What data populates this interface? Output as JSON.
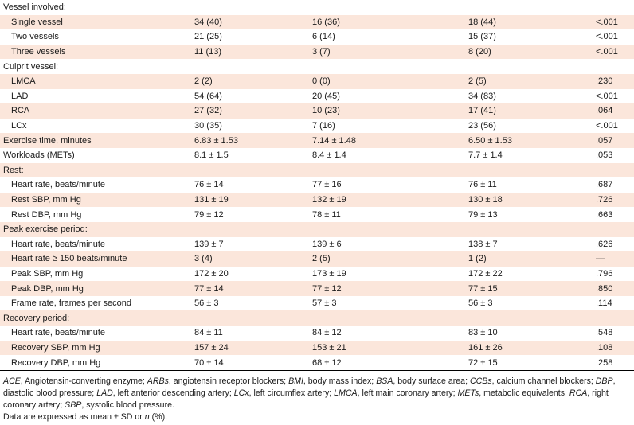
{
  "rows": [
    {
      "label": "Vessel involved:",
      "indent": false,
      "shade": false,
      "c1": "",
      "c2": "",
      "c3": "",
      "p": ""
    },
    {
      "label": "Single vessel",
      "indent": true,
      "shade": true,
      "c1": "34 (40)",
      "c2": "16 (36)",
      "c3": "18 (44)",
      "p": "<.001"
    },
    {
      "label": "Two vessels",
      "indent": true,
      "shade": false,
      "c1": "21 (25)",
      "c2": "6 (14)",
      "c3": "15 (37)",
      "p": "<.001"
    },
    {
      "label": "Three vessels",
      "indent": true,
      "shade": true,
      "c1": "11 (13)",
      "c2": "3 (7)",
      "c3": "8 (20)",
      "p": "<.001"
    },
    {
      "label": "Culprit vessel:",
      "indent": false,
      "shade": false,
      "c1": "",
      "c2": "",
      "c3": "",
      "p": ""
    },
    {
      "label": "LMCA",
      "indent": true,
      "shade": true,
      "c1": "2 (2)",
      "c2": "0 (0)",
      "c3": "2 (5)",
      "p": ".230"
    },
    {
      "label": "LAD",
      "indent": true,
      "shade": false,
      "c1": "54 (64)",
      "c2": "20 (45)",
      "c3": "34 (83)",
      "p": "<.001"
    },
    {
      "label": "RCA",
      "indent": true,
      "shade": true,
      "c1": "27 (32)",
      "c2": "10 (23)",
      "c3": "17 (41)",
      "p": ".064"
    },
    {
      "label": "LCx",
      "indent": true,
      "shade": false,
      "c1": "30 (35)",
      "c2": "7 (16)",
      "c3": "23 (56)",
      "p": "<.001"
    },
    {
      "label": "Exercise time, minutes",
      "indent": false,
      "shade": true,
      "c1": "6.83 ± 1.53",
      "c2": "7.14 ± 1.48",
      "c3": "6.50 ± 1.53",
      "p": ".057"
    },
    {
      "label": "Workloads (METs)",
      "indent": false,
      "shade": false,
      "c1": "8.1 ± 1.5",
      "c2": "8.4 ± 1.4",
      "c3": "7.7 ± 1.4",
      "p": ".053"
    },
    {
      "label": "Rest:",
      "indent": false,
      "shade": true,
      "c1": "",
      "c2": "",
      "c3": "",
      "p": ""
    },
    {
      "label": "Heart rate, beats/minute",
      "indent": true,
      "shade": false,
      "c1": "76 ± 14",
      "c2": "77 ± 16",
      "c3": "76 ± 11",
      "p": ".687"
    },
    {
      "label": "Rest SBP, mm Hg",
      "indent": true,
      "shade": true,
      "c1": "131 ± 19",
      "c2": "132 ± 19",
      "c3": "130 ± 18",
      "p": ".726"
    },
    {
      "label": "Rest DBP, mm Hg",
      "indent": true,
      "shade": false,
      "c1": "79 ± 12",
      "c2": "78 ± 11",
      "c3": "79 ± 13",
      "p": ".663"
    },
    {
      "label": "Peak exercise period:",
      "indent": false,
      "shade": true,
      "c1": "",
      "c2": "",
      "c3": "",
      "p": ""
    },
    {
      "label": "Heart rate, beats/minute",
      "indent": true,
      "shade": false,
      "c1": "139 ± 7",
      "c2": "139 ± 6",
      "c3": "138 ± 7",
      "p": ".626"
    },
    {
      "label": "Heart rate ≥ 150 beats/minute",
      "indent": true,
      "shade": true,
      "c1": "3 (4)",
      "c2": "2 (5)",
      "c3": "1 (2)",
      "p": "—"
    },
    {
      "label": "Peak SBP, mm Hg",
      "indent": true,
      "shade": false,
      "c1": "172 ± 20",
      "c2": "173 ± 19",
      "c3": "172 ± 22",
      "p": ".796"
    },
    {
      "label": "Peak DBP, mm Hg",
      "indent": true,
      "shade": true,
      "c1": "77 ± 14",
      "c2": "77 ± 12",
      "c3": "77 ± 15",
      "p": ".850"
    },
    {
      "label": "Frame rate, frames per second",
      "indent": true,
      "shade": false,
      "c1": "56 ± 3",
      "c2": "57 ± 3",
      "c3": "56 ± 3",
      "p": ".114"
    },
    {
      "label": "Recovery period:",
      "indent": false,
      "shade": true,
      "c1": "",
      "c2": "",
      "c3": "",
      "p": ""
    },
    {
      "label": "Heart rate, beats/minute",
      "indent": true,
      "shade": false,
      "c1": "84 ± 11",
      "c2": "84 ± 12",
      "c3": "83 ± 10",
      "p": ".548"
    },
    {
      "label": "Recovery SBP, mm Hg",
      "indent": true,
      "shade": true,
      "c1": "157 ± 24",
      "c2": "153 ± 21",
      "c3": "161 ± 26",
      "p": ".108"
    },
    {
      "label": "Recovery DBP, mm Hg",
      "indent": true,
      "shade": false,
      "c1": "70 ± 14",
      "c2": "68 ± 12",
      "c3": "72 ± 15",
      "p": ".258"
    }
  ],
  "footnote": {
    "abbreviations": [
      {
        "term": "ACE",
        "def": ", Angiotensin-converting enzyme; "
      },
      {
        "term": "ARBs",
        "def": ", angiotensin receptor blockers; "
      },
      {
        "term": "BMI",
        "def": ", body mass index; "
      },
      {
        "term": "BSA",
        "def": ", body surface area; "
      },
      {
        "term": "CCBs",
        "def": ", calcium channel blockers; "
      },
      {
        "term": "DBP",
        "def": ", diastolic blood pressure; "
      },
      {
        "term": "LAD",
        "def": ", left anterior descending artery; "
      },
      {
        "term": "LCx",
        "def": ", left circumflex artery; "
      },
      {
        "term": "LMCA",
        "def": ", left main coronary artery; "
      },
      {
        "term": "METs",
        "def": ", metabolic equivalents; "
      },
      {
        "term": "RCA",
        "def": ", right coronary artery; "
      },
      {
        "term": "SBP",
        "def": ", systolic blood pressure."
      }
    ],
    "data_note_prefix": "Data are expressed as mean ± SD or ",
    "data_note_n": "n",
    "data_note_suffix": " (%)."
  },
  "colors": {
    "shade": "#fbe6db",
    "rule": "#000000"
  }
}
